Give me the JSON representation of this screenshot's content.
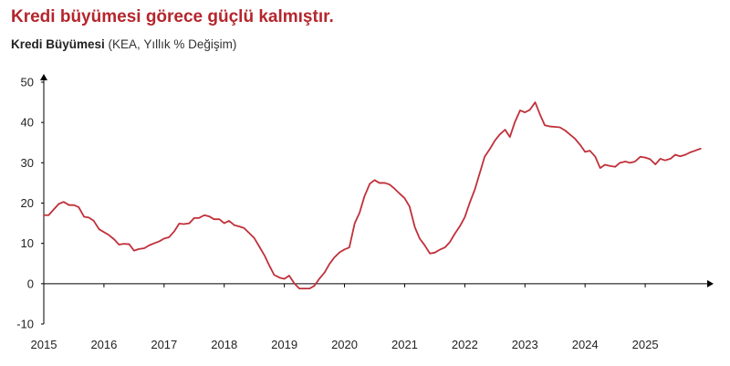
{
  "title": "Kredi büyümesi görece güçlü kalmıştır.",
  "subtitle": {
    "bold": "Kredi Büyümesi",
    "light": "(KEA, Yıllık % Değişim)"
  },
  "colors": {
    "title": "#b5262d",
    "line": "#c0303a",
    "axis": "#000000"
  },
  "chart_data": {
    "type": "line",
    "title": "Kredi büyümesi görece güçlü kalmıştır.",
    "ylabel": "Kredi Büyümesi (KEA, Yıllık % Değişim)",
    "xlabel": "",
    "ylim": [
      -10,
      50
    ],
    "yticks": [
      -10,
      0,
      10,
      20,
      30,
      40,
      50
    ],
    "xlim": [
      2015,
      2026
    ],
    "xticks": [
      "2015",
      "2016",
      "2017",
      "2018",
      "2019",
      "2020",
      "2021",
      "2022",
      "2023",
      "2024",
      "2025"
    ],
    "grid": false,
    "legend": "none",
    "series": [
      {
        "x": [
          2015.0,
          2015.08,
          2015.17,
          2015.25,
          2015.33,
          2015.42,
          2015.5,
          2015.58,
          2015.67,
          2015.75,
          2015.83,
          2015.92,
          2016.0,
          2016.08,
          2016.17,
          2016.25,
          2016.33,
          2016.42,
          2016.5,
          2016.58,
          2016.67,
          2016.75,
          2016.83,
          2016.92,
          2017.0,
          2017.08,
          2017.17,
          2017.25,
          2017.33,
          2017.42,
          2017.5,
          2017.58,
          2017.67,
          2017.75,
          2017.83,
          2017.92,
          2018.0,
          2018.08,
          2018.17,
          2018.25,
          2018.33,
          2018.42,
          2018.5,
          2018.58,
          2018.67,
          2018.75,
          2018.83,
          2018.92,
          2019.0,
          2019.08,
          2019.17,
          2019.25,
          2019.33,
          2019.42,
          2019.5,
          2019.58,
          2019.67,
          2019.75,
          2019.83,
          2019.92,
          2020.0,
          2020.08,
          2020.17,
          2020.25,
          2020.33,
          2020.42,
          2020.5,
          2020.58,
          2020.67,
          2020.75,
          2020.83,
          2020.92,
          2021.0,
          2021.08,
          2021.17,
          2021.25,
          2021.33,
          2021.42,
          2021.5,
          2021.58,
          2021.67,
          2021.75,
          2021.83,
          2021.92,
          2022.0,
          2022.08,
          2022.17,
          2022.25,
          2022.33,
          2022.42,
          2022.5,
          2022.58,
          2022.67,
          2022.75,
          2022.83,
          2022.92,
          2023.0,
          2023.08,
          2023.17,
          2023.25,
          2023.33,
          2023.42,
          2023.5,
          2023.58,
          2023.67,
          2023.75,
          2023.83,
          2023.92,
          2024.0,
          2024.08,
          2024.17,
          2024.25,
          2024.33,
          2024.42,
          2024.5,
          2024.58,
          2024.67,
          2024.75,
          2024.83,
          2024.92,
          2025.0,
          2025.08,
          2025.17,
          2025.25,
          2025.33,
          2025.42,
          2025.5,
          2025.58,
          2025.67,
          2025.75,
          2025.83,
          2025.92
        ],
        "values": [
          17.0,
          17.0,
          18.5,
          19.8,
          20.3,
          19.5,
          19.5,
          19.0,
          16.6,
          16.4,
          15.6,
          13.5,
          12.8,
          12.1,
          11.0,
          9.7,
          9.9,
          9.8,
          8.2,
          8.6,
          8.8,
          9.5,
          10.0,
          10.5,
          11.2,
          11.5,
          13.0,
          14.9,
          14.8,
          15.0,
          16.3,
          16.3,
          17.0,
          16.7,
          16.0,
          16.0,
          15.0,
          15.6,
          14.5,
          14.2,
          13.8,
          12.5,
          11.3,
          9.3,
          7.0,
          4.5,
          2.2,
          1.5,
          1.2,
          2.0,
          0.0,
          -1.2,
          -1.2,
          -1.2,
          -0.5,
          1.2,
          2.8,
          4.9,
          6.5,
          7.8,
          8.5,
          9.0,
          15.0,
          17.6,
          21.6,
          24.8,
          25.7,
          25.0,
          25.0,
          24.6,
          23.6,
          22.3,
          21.2,
          19.2,
          14.0,
          11.2,
          9.6,
          7.5,
          7.7,
          8.4,
          9.0,
          10.3,
          12.3,
          14.3,
          16.5,
          20.0,
          23.5,
          27.5,
          31.5,
          33.5,
          35.5,
          37.0,
          38.2,
          36.4,
          40.0,
          43.0,
          42.5,
          43.1,
          45.0,
          42.0,
          39.3,
          39.0,
          38.9,
          38.8,
          38.0,
          37.0,
          36.0,
          34.4,
          32.7,
          33.0,
          31.5,
          28.7,
          29.5,
          29.2,
          29.0,
          30.0,
          30.3,
          30.0,
          30.3,
          31.5,
          31.3,
          30.9,
          29.6,
          31.0,
          30.6,
          31.0,
          32.0,
          31.6,
          32.0,
          32.6,
          33.0,
          33.5
        ]
      }
    ]
  }
}
